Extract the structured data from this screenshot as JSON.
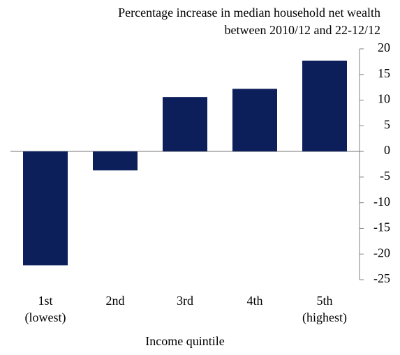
{
  "chart_data": {
    "type": "bar",
    "title": [
      "Percentage increase in median household net wealth",
      "between 2010/12 and 22-12/12"
    ],
    "x_label": "Income quintile",
    "categories": [
      [
        "1st",
        "(lowest)"
      ],
      [
        "2nd"
      ],
      [
        "3rd"
      ],
      [
        "4th"
      ],
      [
        "5th",
        "(highest)"
      ]
    ],
    "values": [
      -22.2,
      -3.7,
      10.6,
      12.2,
      17.7
    ],
    "color": "#0c1f5b",
    "ylim": [
      -25,
      20
    ],
    "yticks": [
      -25,
      -20,
      -15,
      -10,
      -5,
      0,
      5,
      10,
      15,
      20
    ],
    "y_axis_side": "right",
    "grid": false
  }
}
